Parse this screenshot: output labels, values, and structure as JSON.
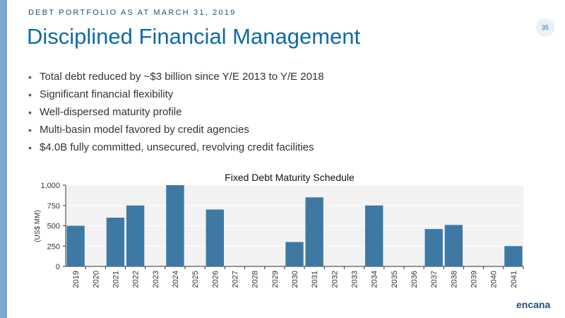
{
  "slide": {
    "supertitle": "DEBT PORTFOLIO AS AT MARCH 31, 2019",
    "title": "Disciplined Financial Management",
    "page_number": "35",
    "logo": "encana",
    "bullets": [
      "Total debt reduced by ~$3 billion since Y/E 2013 to Y/E 2018",
      "Significant financial flexibility",
      "Well-dispersed maturity profile",
      "Multi-basin model favored by credit agencies",
      "$4.0B fully committed, unsecured, revolving credit facilities"
    ]
  },
  "colors": {
    "bar": "#3d79a3",
    "accent": "#0e6aa6",
    "left_bar": "#7aa7cf",
    "plot_bg": "#f2f2f2"
  },
  "chart_data": {
    "type": "bar",
    "title": "Fixed Debt Maturity Schedule",
    "ylabel": "(US$ MM)",
    "xlabel": "",
    "ylim": [
      0,
      1000
    ],
    "yticks": [
      0,
      250,
      500,
      750,
      1000
    ],
    "ytick_labels": [
      "0",
      "250",
      "500",
      "750",
      "1,000"
    ],
    "grid": true,
    "categories": [
      "2019",
      "2020",
      "2021",
      "2022",
      "2023",
      "2024",
      "2025",
      "2026",
      "2027",
      "2028",
      "2029",
      "2030",
      "2031",
      "2032",
      "2033",
      "2034",
      "2035",
      "2036",
      "2037",
      "2038",
      "2039",
      "2040",
      "2041"
    ],
    "values": [
      500,
      0,
      600,
      750,
      0,
      1000,
      0,
      700,
      0,
      0,
      0,
      300,
      850,
      0,
      0,
      750,
      0,
      0,
      460,
      510,
      0,
      0,
      250
    ]
  }
}
